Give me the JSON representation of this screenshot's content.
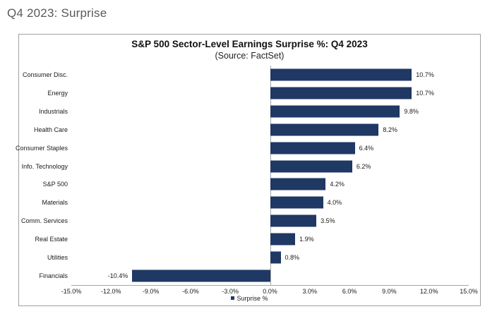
{
  "page": {
    "title": "Q4 2023: Surprise"
  },
  "chart": {
    "title": "S&P 500 Sector-Level Earnings Surprise %: Q4 2023",
    "subtitle": "(Source: FactSet)",
    "legend_label": "Surprise %"
  },
  "chart_data": {
    "type": "bar",
    "orientation": "horizontal",
    "title": "S&P 500 Sector-Level Earnings Surprise %: Q4 2023",
    "subtitle": "(Source: FactSet)",
    "categories": [
      "Consumer Disc.",
      "Energy",
      "Industrials",
      "Health Care",
      "Consumer Staples",
      "Info. Technology",
      "S&P 500",
      "Materials",
      "Comm. Services",
      "Real Estate",
      "Utilities",
      "Financials"
    ],
    "values": [
      10.7,
      10.7,
      9.8,
      8.2,
      6.4,
      6.2,
      4.2,
      4.0,
      3.5,
      1.9,
      0.8,
      -10.4
    ],
    "data_labels": [
      "10.7%",
      "10.7%",
      "9.8%",
      "8.2%",
      "6.4%",
      "6.2%",
      "4.2%",
      "4.0%",
      "3.5%",
      "1.9%",
      "0.8%",
      "-10.4%"
    ],
    "xlabel": "",
    "ylabel": "",
    "xlim": [
      -15,
      15
    ],
    "x_ticks": [
      "-15.0%",
      "-12.0%",
      "-9.0%",
      "-6.0%",
      "-3.0%",
      "0.0%",
      "3.0%",
      "6.0%",
      "9.0%",
      "12.0%",
      "15.0%"
    ],
    "legend_entries": [
      "Surprise %"
    ],
    "legend_position": "bottom",
    "grid": false
  },
  "colors": {
    "bar": "#1F3864",
    "page_title": "#595959",
    "border": "#A0A0A0",
    "axis": "#A6A6A6",
    "text": "#1A1A1A"
  }
}
